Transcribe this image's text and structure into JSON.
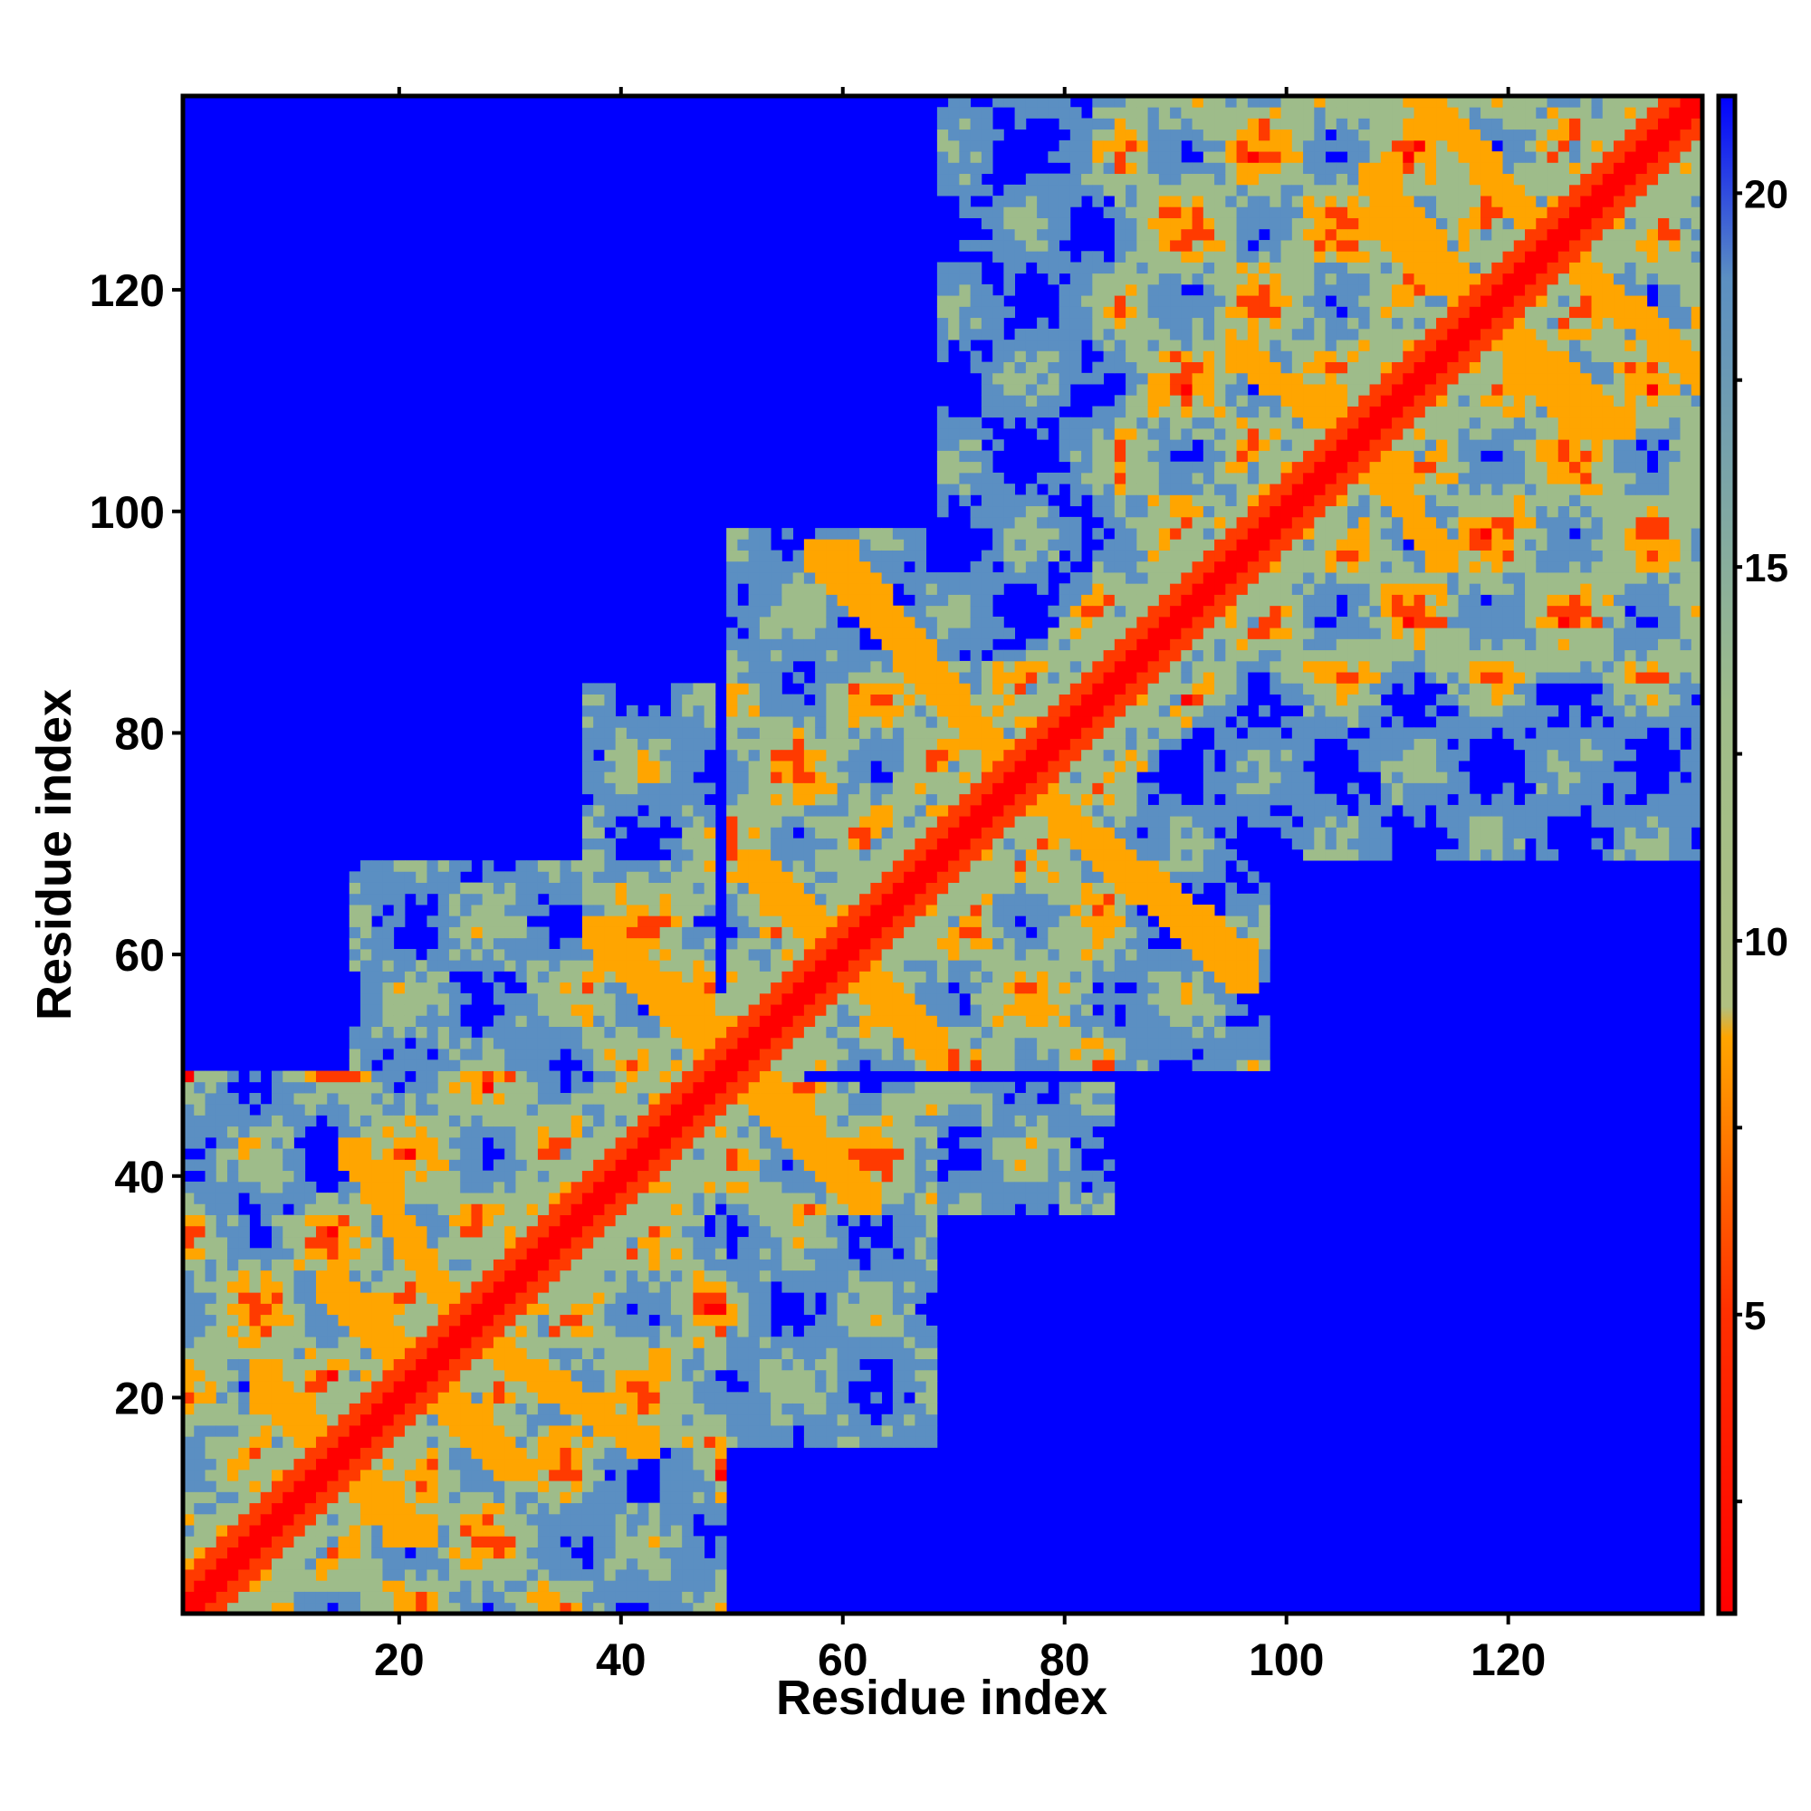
{
  "chart_data": {
    "type": "heatmap",
    "title": "",
    "xlabel": "Residue index",
    "ylabel": "Residue index",
    "xlim": [
      1,
      137
    ],
    "ylim": [
      1,
      137
    ],
    "x_ticks": [
      20,
      40,
      60,
      80,
      100,
      120
    ],
    "y_ticks": [
      20,
      40,
      60,
      80,
      100,
      120
    ],
    "n_residues": 137,
    "value_range": [
      1,
      21.3
    ],
    "colorbar": {
      "ticks": [
        5,
        10,
        15,
        20
      ],
      "colors": {
        "near": "#ff0000",
        "close": "#ffa500",
        "mid": "#9ebc8a",
        "far": "#5b8fc2",
        "cutoff": "#0000ff"
      }
    },
    "description_values": {
      "diagonal_distance": 1,
      "helix_contact_distance": 6,
      "nearby_distance": 10,
      "far_distance": 21
    },
    "segments": [
      {
        "start": 1,
        "end": 15
      },
      {
        "start": 16,
        "end": 36
      },
      {
        "start": 37,
        "end": 48
      },
      {
        "start": 50,
        "end": 68
      },
      {
        "start": 69,
        "end": 84
      },
      {
        "start": 85,
        "end": 98
      },
      {
        "start": 99,
        "end": 137
      }
    ],
    "contact_bands": [
      {
        "i_from": 8,
        "i_to": 20,
        "j_from": 22,
        "j_to": 8
      },
      {
        "i_from": 14,
        "i_to": 26,
        "j_from": 30,
        "j_to": 18
      },
      {
        "i_from": 26,
        "i_to": 42,
        "j_from": 26,
        "j_to": 16
      },
      {
        "i_from": 38,
        "i_to": 50,
        "j_from": 62,
        "j_to": 52
      },
      {
        "i_from": 50,
        "i_to": 62,
        "j_from": 50,
        "j_to": 38
      },
      {
        "i_from": 52,
        "i_to": 66,
        "j_from": 68,
        "j_to": 54
      },
      {
        "i_from": 60,
        "i_to": 74,
        "j_from": 96,
        "j_to": 78
      },
      {
        "i_from": 78,
        "i_to": 96,
        "j_from": 74,
        "j_to": 58
      },
      {
        "i_from": 104,
        "i_to": 114,
        "j_from": 110,
        "j_to": 96
      },
      {
        "i_from": 108,
        "i_to": 130,
        "j_from": 126,
        "j_to": 108
      },
      {
        "i_from": 112,
        "i_to": 124,
        "j_from": 138,
        "j_to": 124
      }
    ]
  }
}
